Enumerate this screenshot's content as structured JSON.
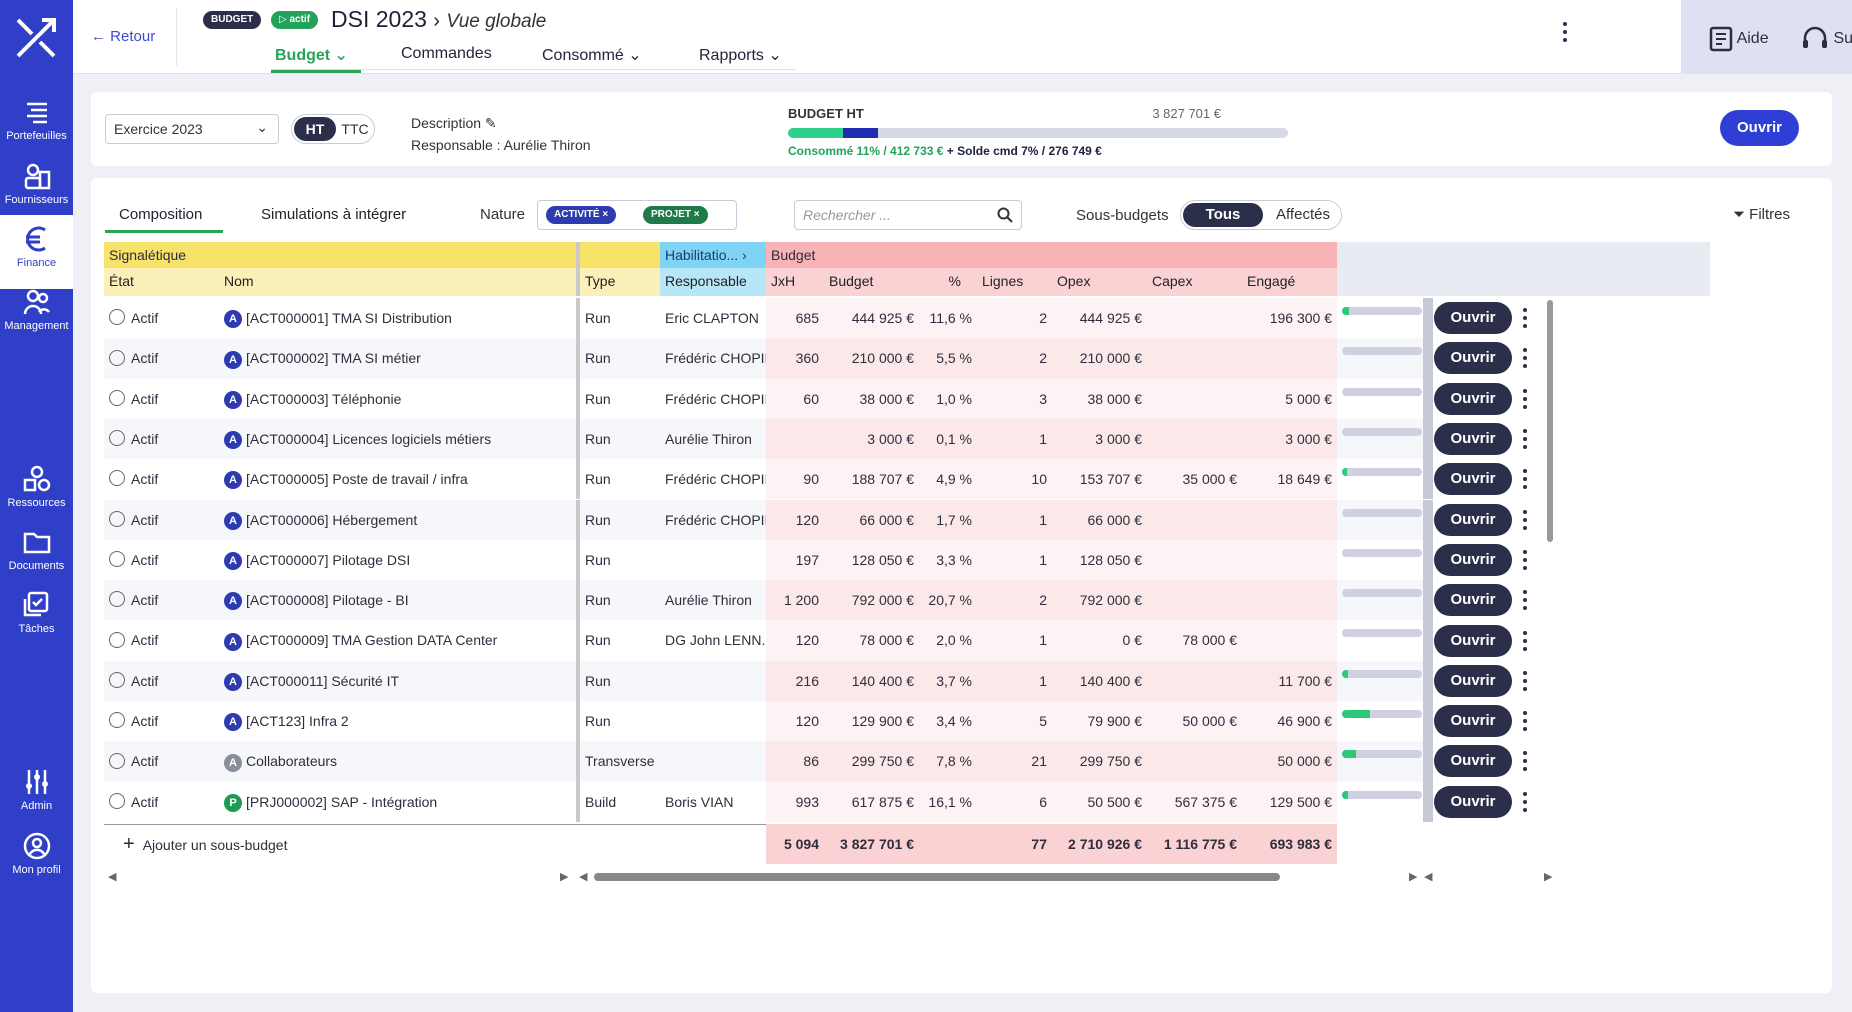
{
  "nav": {
    "items": [
      {
        "label": "Portefeuilles",
        "icon": "portfolio-icon",
        "active": false
      },
      {
        "label": "Fournisseurs",
        "icon": "suppliers-icon",
        "active": false
      },
      {
        "label": "Finance",
        "icon": "euro-icon",
        "active": true
      },
      {
        "label": "Management",
        "icon": "people-icon",
        "active": false
      },
      {
        "label": "Ressources",
        "icon": "shapes-icon",
        "active": false
      },
      {
        "label": "Documents",
        "icon": "folder-icon",
        "active": false
      },
      {
        "label": "Tâches",
        "icon": "tasks-icon",
        "active": false
      },
      {
        "label": "Admin",
        "icon": "sliders-icon",
        "active": false
      },
      {
        "label": "Mon profil",
        "icon": "user-icon",
        "active": false
      }
    ]
  },
  "header": {
    "back": "Retour",
    "badge_type": "BUDGET",
    "badge_status": "actif",
    "title": "DSI 2023",
    "view": "Vue globale",
    "tabs": [
      "Budget",
      "Commandes",
      "Consommé",
      "Rapports"
    ],
    "help": "Aide",
    "support": "Support"
  },
  "summary": {
    "exercice": "Exercice 2023",
    "ht": "HT",
    "ttc": "TTC",
    "description_label": "Description",
    "responsable": "Responsable : Aurélie Thiron",
    "budget_label": "BUDGET HT",
    "budget_value": "3 827 701 €",
    "consumed_pct": 0.11,
    "solde_pct": 0.07,
    "caption_consumed": "Consommé 11% / 412 733 €",
    "caption_solde": "+ Solde cmd 7% / 276 749 €",
    "open": "Ouvrir"
  },
  "toolbar": {
    "tabs": [
      "Composition",
      "Simulations à intégrer"
    ],
    "nature_label": "Nature",
    "chips": [
      "ACTIVITÉ",
      "PROJET"
    ],
    "search_placeholder": "Rechercher ...",
    "sous_budgets_label": "Sous-budgets",
    "seg_on": "Tous",
    "seg_off": "Affectés",
    "filters": "Filtres"
  },
  "table": {
    "groups": {
      "signaletique": "Signalétique",
      "habilitation": "Habilitatio...",
      "budget": "Budget"
    },
    "columns": [
      "État",
      "Nom",
      "Type",
      "Responsable",
      "JxH",
      "Budget",
      "%",
      "Lignes",
      "Opex",
      "Capex",
      "Engagé"
    ],
    "rows": [
      {
        "etat": "Actif",
        "kind": "A",
        "nom": "[ACT000001] TMA SI Distribution",
        "type": "Run",
        "resp": "Eric CLAPTON",
        "jxh": "685",
        "budget": "444 925 €",
        "pct": "11,6 %",
        "lignes": "2",
        "opex": "444 925 €",
        "capex": "",
        "engage": "196 300 €",
        "cons": 0.09,
        "cons_label": "Consommé 9%"
      },
      {
        "etat": "Actif",
        "kind": "A",
        "nom": "[ACT000002] TMA SI métier",
        "type": "Run",
        "resp": "Frédéric CHOPIN",
        "jxh": "360",
        "budget": "210 000 €",
        "pct": "5,5 %",
        "lignes": "2",
        "opex": "210 000 €",
        "capex": "",
        "engage": "",
        "cons": 0.0,
        "cons_label": "Consommé 0%"
      },
      {
        "etat": "Actif",
        "kind": "A",
        "nom": "[ACT000003] Téléphonie",
        "type": "Run",
        "resp": "Frédéric CHOPIN",
        "jxh": "60",
        "budget": "38 000 €",
        "pct": "1,0 %",
        "lignes": "3",
        "opex": "38 000 €",
        "capex": "",
        "engage": "5 000 €",
        "cons": 0.0,
        "cons_label": "Consommé 0%"
      },
      {
        "etat": "Actif",
        "kind": "A",
        "nom": "[ACT000004] Licences logiciels métiers",
        "type": "Run",
        "resp": "Aurélie Thiron",
        "jxh": "",
        "budget": "3 000 €",
        "pct": "0,1 %",
        "lignes": "1",
        "opex": "3 000 €",
        "capex": "",
        "engage": "3 000 €",
        "cons": 0.0,
        "cons_label": "Consommé 0%"
      },
      {
        "etat": "Actif",
        "kind": "A",
        "nom": "[ACT000005] Poste de travail / infra",
        "type": "Run",
        "resp": "Frédéric CHOPIN",
        "jxh": "90",
        "budget": "188 707 €",
        "pct": "4,9 %",
        "lignes": "10",
        "opex": "153 707 €",
        "capex": "35 000 €",
        "engage": "18 649 €",
        "cons": 0.06,
        "cons_label": "Consommé 6%"
      },
      {
        "etat": "Actif",
        "kind": "A",
        "nom": "[ACT000006] Hébergement",
        "type": "Run",
        "resp": "Frédéric CHOPIN",
        "jxh": "120",
        "budget": "66 000 €",
        "pct": "1,7 %",
        "lignes": "1",
        "opex": "66 000 €",
        "capex": "",
        "engage": "",
        "cons": 0.0,
        "cons_label": "Consommé 0%"
      },
      {
        "etat": "Actif",
        "kind": "A",
        "nom": "[ACT000007] Pilotage DSI",
        "type": "Run",
        "resp": "",
        "jxh": "197",
        "budget": "128 050 €",
        "pct": "3,3 %",
        "lignes": "1",
        "opex": "128 050 €",
        "capex": "",
        "engage": "",
        "cons": 0.0,
        "cons_label": "Consommé 0%"
      },
      {
        "etat": "Actif",
        "kind": "A",
        "nom": "[ACT000008] Pilotage - BI",
        "type": "Run",
        "resp": "Aurélie Thiron",
        "jxh": "1 200",
        "budget": "792 000 €",
        "pct": "20,7 %",
        "lignes": "2",
        "opex": "792 000 €",
        "capex": "",
        "engage": "",
        "cons": 0.0,
        "cons_label": "Consommé 0%"
      },
      {
        "etat": "Actif",
        "kind": "A",
        "nom": "[ACT000009] TMA Gestion DATA Center",
        "type": "Run",
        "resp": "DG John LENN...",
        "jxh": "120",
        "budget": "78 000 €",
        "pct": "2,0 %",
        "lignes": "1",
        "opex": "0 €",
        "capex": "78 000 €",
        "engage": "",
        "cons": 0.0,
        "cons_label": "Consommé 0%"
      },
      {
        "etat": "Actif",
        "kind": "A",
        "nom": "[ACT000011] Sécurité IT",
        "type": "Run",
        "resp": "",
        "jxh": "216",
        "budget": "140 400 €",
        "pct": "3,7 %",
        "lignes": "1",
        "opex": "140 400 €",
        "capex": "",
        "engage": "11 700 €",
        "cons": 0.08,
        "cons_label": "Consommé 8%"
      },
      {
        "etat": "Actif",
        "kind": "A",
        "nom": "[ACT123] Infra 2",
        "type": "Run",
        "resp": "",
        "jxh": "120",
        "budget": "129 900 €",
        "pct": "3,4 %",
        "lignes": "5",
        "opex": "79 900 €",
        "capex": "50 000 €",
        "engage": "46 900 €",
        "cons": 0.35,
        "cons_label": "Consommé 35%"
      },
      {
        "etat": "Actif",
        "kind": "A",
        "nom": "Collaborateurs",
        "type": "Transverse",
        "resp": "",
        "jxh": "86",
        "budget": "299 750 €",
        "pct": "7,8 %",
        "lignes": "21",
        "opex": "299 750 €",
        "capex": "",
        "engage": "50 000 €",
        "cons": 0.17,
        "cons_label": "Consommé 17%"
      },
      {
        "etat": "Actif",
        "kind": "P",
        "nom": "[PRJ000002] SAP - Intégration",
        "type": "Build",
        "resp": "Boris VIAN",
        "jxh": "993",
        "budget": "617 875 €",
        "pct": "16,1 %",
        "lignes": "6",
        "opex": "50 500 €",
        "capex": "567 375 €",
        "engage": "129 500 €",
        "cons": 0.08,
        "cons_label": "Consommé 8%"
      }
    ],
    "open_label": "Ouvrir",
    "add_label": "Ajouter un sous-budget",
    "totals": {
      "jxh": "5 094",
      "budget": "3 827 701 €",
      "lignes": "77",
      "opex": "2 710 926 €",
      "capex": "1 116 775 €",
      "engage": "693 983 €"
    }
  }
}
